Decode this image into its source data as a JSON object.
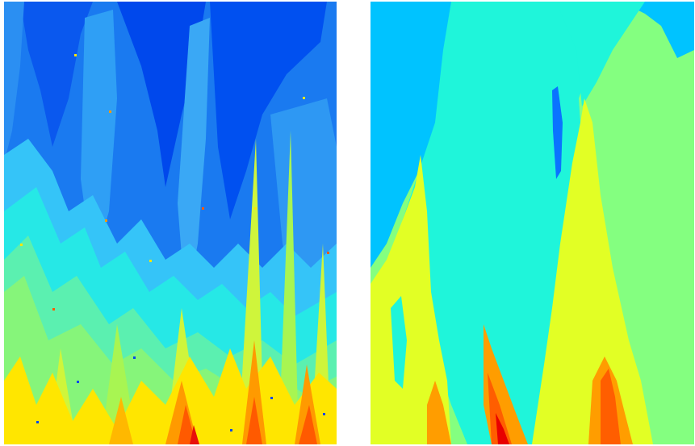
{
  "image": {
    "description_free": true,
    "panels": [
      {
        "id": "left",
        "colormap": "jet",
        "colors": {
          "deep_blue": "#0050f0",
          "blue": "#1a7af0",
          "light_blue": "#2f9ff5",
          "sky": "#35c4f8",
          "cyan": "#26e8e6",
          "aqua_green": "#5bf0b0",
          "light_green": "#86f57a",
          "yellow_green": "#cff53b",
          "yellow": "#ffe600",
          "orange": "#ff9a00",
          "red_orange": "#ff5a00",
          "red": "#e8100a"
        }
      },
      {
        "id": "right",
        "colormap": "jet",
        "colors": {
          "sky": "#00c3ff",
          "cyan": "#1ff5da",
          "light_green": "#84ff80",
          "yellow_green": "#e2ff25",
          "orange": "#ff9d00",
          "red_orange": "#ff5e00",
          "red": "#e80000",
          "deep_blue": "#0a73ff"
        }
      }
    ]
  }
}
